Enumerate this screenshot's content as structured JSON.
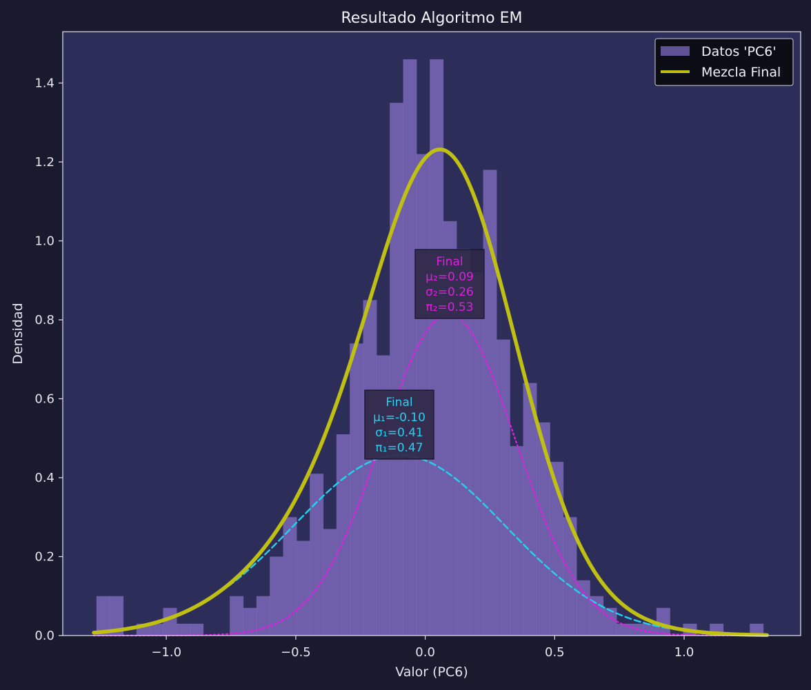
{
  "chart_data": {
    "type": "bar",
    "title": "Resultado Algoritmo EM",
    "xlabel": "Valor (PC6)",
    "ylabel": "Densidad",
    "xlim": [
      -1.4,
      1.45
    ],
    "ylim": [
      0,
      1.53
    ],
    "xticks": [
      -1.0,
      -0.5,
      0.0,
      0.5,
      1.0
    ],
    "xtick_labels": [
      "−1.0",
      "−0.5",
      "0.0",
      "0.5",
      "1.0"
    ],
    "yticks": [
      0.0,
      0.2,
      0.4,
      0.6,
      0.8,
      1.0,
      1.2,
      1.4
    ],
    "ytick_labels": [
      "0.0",
      "0.2",
      "0.4",
      "0.6",
      "0.8",
      "1.0",
      "1.2",
      "1.4"
    ],
    "legend_position": "top-right",
    "histogram": {
      "name": "Datos 'PC6'",
      "color": "#7b68b8",
      "bin_start": -1.27,
      "bin_width": 0.0515,
      "densities": [
        0.1,
        0.1,
        0.0,
        0.03,
        0.03,
        0.07,
        0.03,
        0.03,
        0.0,
        0.0,
        0.1,
        0.07,
        0.1,
        0.2,
        0.3,
        0.24,
        0.41,
        0.27,
        0.51,
        0.74,
        0.85,
        0.71,
        1.35,
        1.46,
        1.22,
        1.46,
        1.05,
        0.98,
        0.92,
        1.18,
        0.75,
        0.48,
        0.64,
        0.54,
        0.44,
        0.3,
        0.14,
        0.1,
        0.07,
        0.03,
        0.03,
        0.03,
        0.07,
        0.0,
        0.03,
        0.0,
        0.03,
        0.0,
        0.0,
        0.03
      ]
    },
    "components": [
      {
        "label": "Final",
        "mu": -0.1,
        "sigma": 0.41,
        "pi": 0.47,
        "lines": [
          "Final",
          "μ₁=-0.10",
          "σ₁=0.41",
          "π₁=0.47"
        ],
        "color": "#22d3ee",
        "style": "dashed"
      },
      {
        "label": "Final",
        "mu": 0.09,
        "sigma": 0.26,
        "pi": 0.53,
        "lines": [
          "Final",
          "μ₂=0.09",
          "σ₂=0.26",
          "π₂=0.53"
        ],
        "color": "#e01ee0",
        "style": "dotted"
      }
    ],
    "mixture": {
      "name": "Mezcla Final",
      "color": "#c0c012",
      "x_range": [
        -1.28,
        1.32
      ]
    }
  }
}
